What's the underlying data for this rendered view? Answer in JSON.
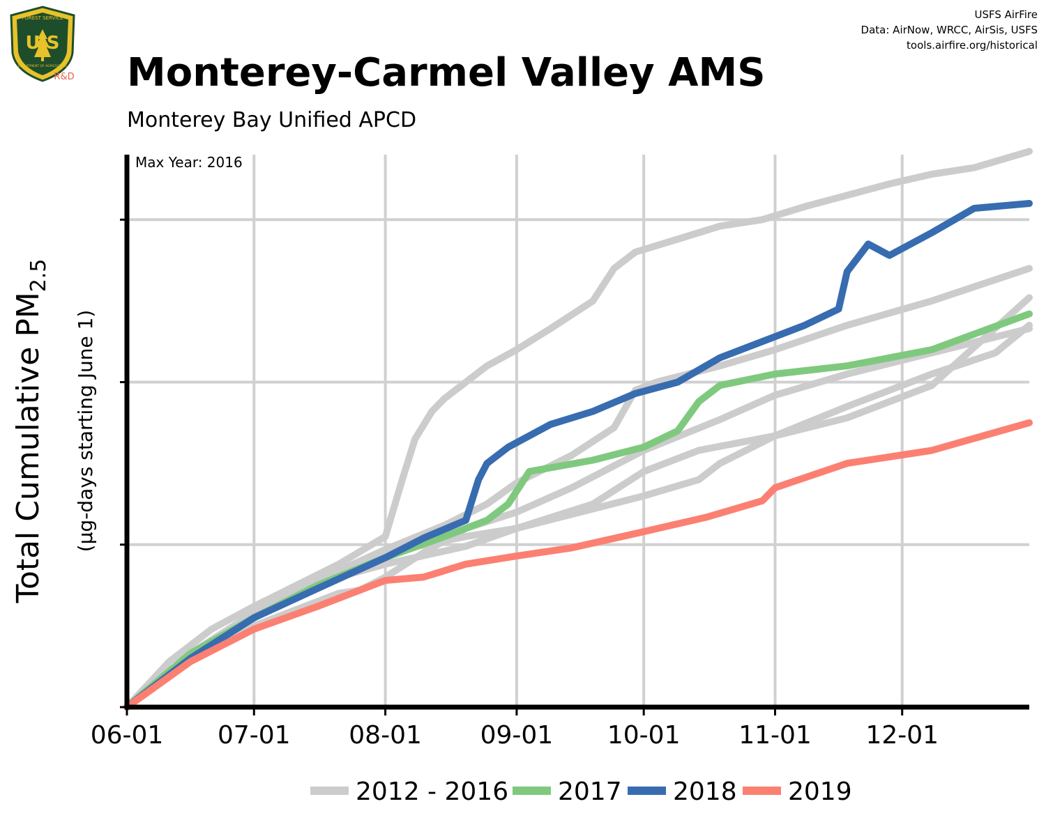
{
  "header": {
    "title": "Monterey-Carmel Valley AMS",
    "subtitle": "Monterey Bay Unified APCD",
    "credits": [
      "USFS AirFire",
      "Data: AirNow, WRCC, AirSis, USFS",
      "tools.airfire.org/historical"
    ]
  },
  "logo": {
    "top_text": "FOREST SERVICE",
    "letters": "U S",
    "bottom_text": "DEPARTMENT OF AGRICULTURE",
    "badge": "R&D",
    "colors": {
      "shield": "#1e4d2b",
      "gold": "#e8c22a",
      "badge": "#e8604c"
    }
  },
  "chart_data": {
    "type": "line",
    "annotation": "Max Year: 2016",
    "ylabel_main": "Total Cumulative PM",
    "ylabel_sub": "2.5",
    "ylabel_note": "(µg-days starting June 1)",
    "x_ticks": [
      "06-01",
      "07-01",
      "08-01",
      "09-01",
      "10-01",
      "11-01",
      "12-01"
    ],
    "x_tick_days": [
      0,
      30,
      61,
      92,
      122,
      153,
      183
    ],
    "xlim": [
      0,
      213
    ],
    "ylim": [
      0,
      3.4
    ],
    "y_ticks": [
      0,
      1,
      2,
      3
    ],
    "y_tick_labels_shown": false,
    "grid": true,
    "legend_position": "bottom",
    "legend": [
      {
        "label": "2012 - 2016",
        "color": "#cccccc"
      },
      {
        "label": "2017",
        "color": "#7fc97f"
      },
      {
        "label": "2018",
        "color": "#386cb0"
      },
      {
        "label": "2019",
        "color": "#fb8072"
      }
    ],
    "series": [
      {
        "group": "2012 - 2016",
        "color": "#cccccc",
        "x": [
          0,
          10,
          20,
          30,
          40,
          50,
          61,
          65,
          68,
          72,
          75,
          80,
          85,
          92,
          100,
          110,
          115,
          120,
          130,
          140,
          150,
          160,
          170,
          180,
          190,
          200,
          213
        ],
        "y": [
          0,
          0.28,
          0.48,
          0.62,
          0.75,
          0.88,
          1.05,
          1.4,
          1.65,
          1.82,
          1.9,
          2.0,
          2.1,
          2.2,
          2.33,
          2.5,
          2.7,
          2.8,
          2.88,
          2.96,
          3.0,
          3.08,
          3.15,
          3.22,
          3.28,
          3.32,
          3.42
        ]
      },
      {
        "group": "2012 - 2016",
        "color": "#cccccc",
        "x": [
          0,
          15,
          30,
          45,
          61,
          75,
          85,
          92,
          105,
          115,
          120,
          125,
          140,
          153,
          170,
          190,
          213
        ],
        "y": [
          0,
          0.33,
          0.58,
          0.78,
          0.97,
          1.12,
          1.25,
          1.38,
          1.55,
          1.72,
          1.95,
          2.0,
          2.1,
          2.2,
          2.35,
          2.5,
          2.7
        ]
      },
      {
        "group": "2012 - 2016",
        "color": "#cccccc",
        "x": [
          0,
          15,
          30,
          50,
          61,
          80,
          92,
          110,
          122,
          135,
          153,
          170,
          190,
          213
        ],
        "y": [
          0,
          0.32,
          0.55,
          0.8,
          0.88,
          0.99,
          1.1,
          1.25,
          1.45,
          1.58,
          1.67,
          1.78,
          1.98,
          2.52
        ]
      },
      {
        "group": "2012 - 2016",
        "color": "#cccccc",
        "x": [
          0,
          15,
          30,
          50,
          61,
          80,
          92,
          110,
          122,
          135,
          140,
          153,
          170,
          190,
          205,
          213
        ],
        "y": [
          0,
          0.33,
          0.55,
          0.8,
          0.95,
          1.05,
          1.1,
          1.22,
          1.3,
          1.4,
          1.5,
          1.67,
          1.85,
          2.05,
          2.18,
          2.35
        ]
      },
      {
        "group": "2012 - 2016",
        "color": "#cccccc",
        "x": [
          0,
          15,
          30,
          50,
          55,
          61,
          70,
          80,
          92,
          105,
          122,
          140,
          153,
          170,
          190,
          213
        ],
        "y": [
          0,
          0.3,
          0.5,
          0.7,
          0.72,
          0.8,
          0.95,
          1.1,
          1.2,
          1.35,
          1.58,
          1.77,
          1.92,
          2.05,
          2.18,
          2.33
        ]
      },
      {
        "group": "2017",
        "label": "2017",
        "color": "#7fc97f",
        "x": [
          0,
          15,
          30,
          45,
          61,
          75,
          85,
          90,
          95,
          110,
          122,
          130,
          135,
          140,
          153,
          170,
          190,
          213
        ],
        "y": [
          0,
          0.33,
          0.55,
          0.75,
          0.92,
          1.05,
          1.15,
          1.25,
          1.45,
          1.52,
          1.6,
          1.7,
          1.88,
          1.98,
          2.05,
          2.1,
          2.2,
          2.42
        ]
      },
      {
        "group": "2018",
        "label": "2018",
        "color": "#386cb0",
        "x": [
          0,
          15,
          30,
          45,
          61,
          70,
          80,
          83,
          85,
          90,
          100,
          110,
          120,
          130,
          140,
          150,
          160,
          168,
          170,
          175,
          180,
          190,
          200,
          213
        ],
        "y": [
          0,
          0.3,
          0.55,
          0.73,
          0.92,
          1.04,
          1.15,
          1.4,
          1.5,
          1.6,
          1.74,
          1.82,
          1.93,
          2.0,
          2.15,
          2.25,
          2.35,
          2.45,
          2.68,
          2.85,
          2.78,
          2.92,
          3.07,
          3.1
        ]
      },
      {
        "group": "2019",
        "label": "2019",
        "color": "#fb8072",
        "x": [
          0,
          15,
          30,
          45,
          55,
          61,
          70,
          80,
          92,
          105,
          122,
          137,
          150,
          153,
          170,
          190,
          213
        ],
        "y": [
          0,
          0.28,
          0.48,
          0.62,
          0.72,
          0.78,
          0.8,
          0.88,
          0.93,
          0.98,
          1.08,
          1.17,
          1.27,
          1.35,
          1.5,
          1.58,
          1.75
        ]
      }
    ]
  }
}
